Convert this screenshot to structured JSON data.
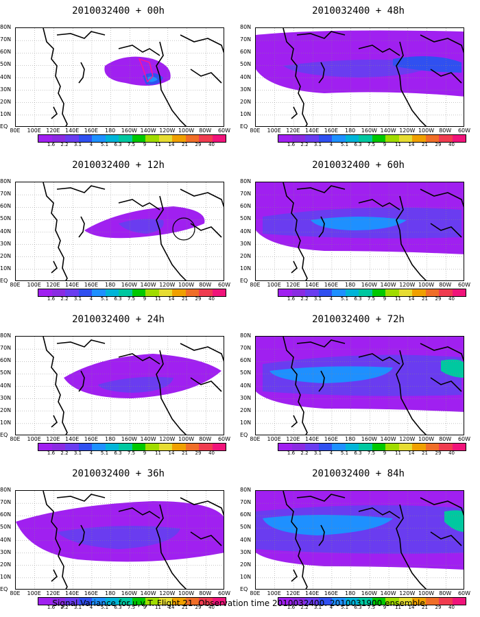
{
  "panels": [
    {
      "id": "p00",
      "title": "2010032400 + 00h",
      "level": 0
    },
    {
      "id": "p12",
      "title": "2010032400 + 12h",
      "level": 1
    },
    {
      "id": "p24",
      "title": "2010032400 + 24h",
      "level": 2
    },
    {
      "id": "p36",
      "title": "2010032400 + 36h",
      "level": 3
    },
    {
      "id": "p48",
      "title": "2010032400 + 48h",
      "level": 4
    },
    {
      "id": "p60",
      "title": "2010032400 + 60h",
      "level": 5
    },
    {
      "id": "p72",
      "title": "2010032400 + 72h",
      "level": 6
    },
    {
      "id": "p84",
      "title": "2010032400 + 84h",
      "level": 7
    }
  ],
  "lat_labels": [
    "80N",
    "70N",
    "60N",
    "50N",
    "40N",
    "30N",
    "20N",
    "10N",
    "EQ"
  ],
  "lon_labels": [
    "80E",
    "100E",
    "120E",
    "140E",
    "160E",
    "180",
    "160W",
    "140W",
    "120W",
    "100W",
    "80W",
    "60W"
  ],
  "colorbar": {
    "labels": [
      "1.6",
      "2.2",
      "3.1",
      "4",
      "5.1",
      "6.3",
      "7.5",
      "9",
      "11",
      "14",
      "21",
      "29",
      "40"
    ],
    "colors": [
      "#a020f0",
      "#8a2be2",
      "#6a3cf0",
      "#3050f0",
      "#1e90ff",
      "#00b4d8",
      "#00c8a0",
      "#00c800",
      "#a0dc00",
      "#e6dc32",
      "#f0a000",
      "#f06e28",
      "#f03c50",
      "#f0147a"
    ]
  },
  "caption": "Signal Variance for u,v,T. Flight 21. Observation time 2010032400. 2010031900 ensemble."
}
